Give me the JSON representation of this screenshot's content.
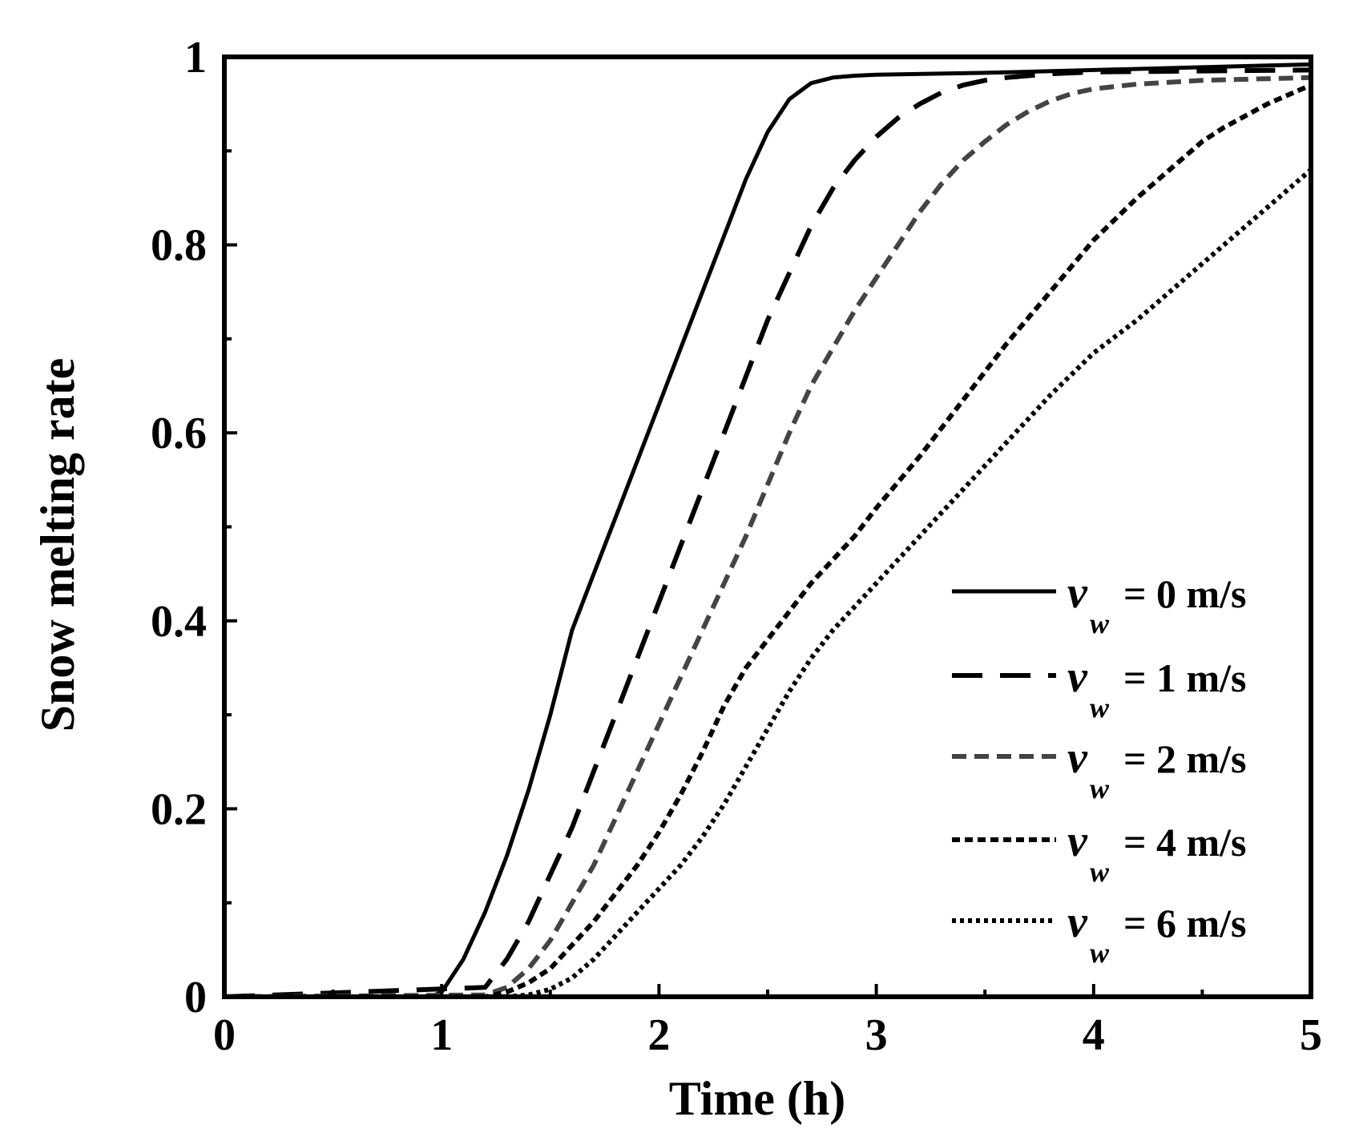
{
  "chart_data": {
    "type": "line",
    "title": "",
    "xlabel": "Time (h)",
    "ylabel": "Snow melting rate",
    "xlim": [
      0,
      5
    ],
    "ylim": [
      0,
      1
    ],
    "x_ticks": [
      0,
      1,
      2,
      3,
      4,
      5
    ],
    "x_tick_labels": [
      "0",
      "1",
      "2",
      "3",
      "4",
      "5"
    ],
    "y_ticks": [
      0,
      0.2,
      0.4,
      0.6,
      0.8,
      1
    ],
    "y_tick_labels": [
      "0",
      "0.2",
      "0.4",
      "0.6",
      "0.8",
      "1"
    ],
    "grid": false,
    "legend_position": "bottom-right",
    "series": [
      {
        "name": "v_w = 0 m/s",
        "label_var": "v",
        "label_sub": "w",
        "label_rest": "= 0 m/s",
        "style": "solid",
        "color": "#000000",
        "x": [
          0.95,
          1.0,
          1.1,
          1.2,
          1.3,
          1.4,
          1.5,
          1.6,
          1.7,
          1.8,
          1.9,
          2.0,
          2.1,
          2.2,
          2.3,
          2.4,
          2.5,
          2.6,
          2.7,
          2.8,
          2.9,
          3.0,
          3.5,
          4.0,
          4.5,
          5.0
        ],
        "y": [
          0.0,
          0.005,
          0.04,
          0.09,
          0.15,
          0.22,
          0.3,
          0.39,
          0.45,
          0.51,
          0.57,
          0.63,
          0.69,
          0.75,
          0.81,
          0.87,
          0.92,
          0.955,
          0.972,
          0.978,
          0.98,
          0.981,
          0.983,
          0.986,
          0.989,
          0.992
        ]
      },
      {
        "name": "v_w = 1 m/s",
        "label_var": "v",
        "label_sub": "w",
        "label_rest": "= 1 m/s",
        "style": "longdash",
        "color": "#000000",
        "x": [
          1.2,
          1.3,
          1.4,
          1.5,
          1.6,
          1.7,
          1.8,
          1.9,
          2.0,
          2.1,
          2.2,
          2.3,
          2.4,
          2.5,
          2.6,
          2.7,
          2.8,
          2.9,
          3.0,
          3.1,
          3.2,
          3.3,
          3.4,
          3.5,
          3.6,
          3.7,
          3.8,
          4.0,
          4.5,
          5.0
        ],
        "y": [
          0.01,
          0.04,
          0.08,
          0.13,
          0.18,
          0.24,
          0.3,
          0.36,
          0.42,
          0.48,
          0.54,
          0.6,
          0.66,
          0.72,
          0.77,
          0.82,
          0.86,
          0.89,
          0.915,
          0.935,
          0.95,
          0.962,
          0.97,
          0.975,
          0.978,
          0.98,
          0.982,
          0.984,
          0.985,
          0.986
        ]
      },
      {
        "name": "v_w = 2 m/s",
        "label_var": "v",
        "label_sub": "w",
        "label_rest": "= 2 m/s",
        "style": "dash",
        "color": "#444444",
        "x": [
          1.2,
          1.3,
          1.4,
          1.5,
          1.6,
          1.7,
          1.8,
          1.9,
          2.0,
          2.1,
          2.2,
          2.3,
          2.4,
          2.5,
          2.6,
          2.7,
          2.8,
          2.9,
          3.0,
          3.1,
          3.2,
          3.3,
          3.4,
          3.5,
          3.6,
          3.7,
          3.8,
          3.9,
          4.0,
          4.2,
          4.5,
          5.0
        ],
        "y": [
          0.002,
          0.01,
          0.03,
          0.06,
          0.1,
          0.14,
          0.19,
          0.24,
          0.29,
          0.34,
          0.39,
          0.44,
          0.49,
          0.545,
          0.6,
          0.65,
          0.69,
          0.73,
          0.765,
          0.8,
          0.835,
          0.865,
          0.89,
          0.91,
          0.928,
          0.942,
          0.953,
          0.961,
          0.966,
          0.971,
          0.975,
          0.978
        ]
      },
      {
        "name": "v_w = 4 m/s",
        "label_var": "v",
        "label_sub": "w",
        "label_rest": "= 4 m/s",
        "style": "shortdash",
        "color": "#000000",
        "x": [
          1.2,
          1.3,
          1.4,
          1.5,
          1.6,
          1.7,
          1.8,
          1.9,
          2.0,
          2.1,
          2.2,
          2.3,
          2.4,
          2.5,
          2.6,
          2.7,
          2.8,
          2.9,
          3.0,
          3.2,
          3.4,
          3.6,
          3.8,
          4.0,
          4.2,
          4.4,
          4.5,
          4.6,
          4.8,
          5.0
        ],
        "y": [
          0.0,
          0.005,
          0.015,
          0.03,
          0.055,
          0.08,
          0.11,
          0.14,
          0.175,
          0.215,
          0.26,
          0.31,
          0.35,
          0.38,
          0.41,
          0.44,
          0.465,
          0.49,
          0.52,
          0.575,
          0.635,
          0.695,
          0.75,
          0.805,
          0.85,
          0.89,
          0.91,
          0.925,
          0.95,
          0.97
        ]
      },
      {
        "name": "v_w = 6 m/s",
        "label_var": "v",
        "label_sub": "w",
        "label_rest": "= 6 m/s",
        "style": "dot",
        "color": "#000000",
        "x": [
          1.3,
          1.4,
          1.5,
          1.6,
          1.7,
          1.8,
          1.9,
          2.0,
          2.1,
          2.2,
          2.3,
          2.4,
          2.5,
          2.6,
          2.7,
          2.8,
          2.9,
          3.0,
          3.2,
          3.4,
          3.6,
          3.8,
          4.0,
          4.2,
          4.4,
          4.6,
          4.8,
          5.0
        ],
        "y": [
          0.0,
          0.002,
          0.008,
          0.02,
          0.04,
          0.065,
          0.09,
          0.115,
          0.14,
          0.17,
          0.205,
          0.245,
          0.285,
          0.325,
          0.36,
          0.39,
          0.415,
          0.44,
          0.49,
          0.54,
          0.59,
          0.64,
          0.685,
          0.72,
          0.76,
          0.8,
          0.84,
          0.88
        ]
      }
    ]
  }
}
